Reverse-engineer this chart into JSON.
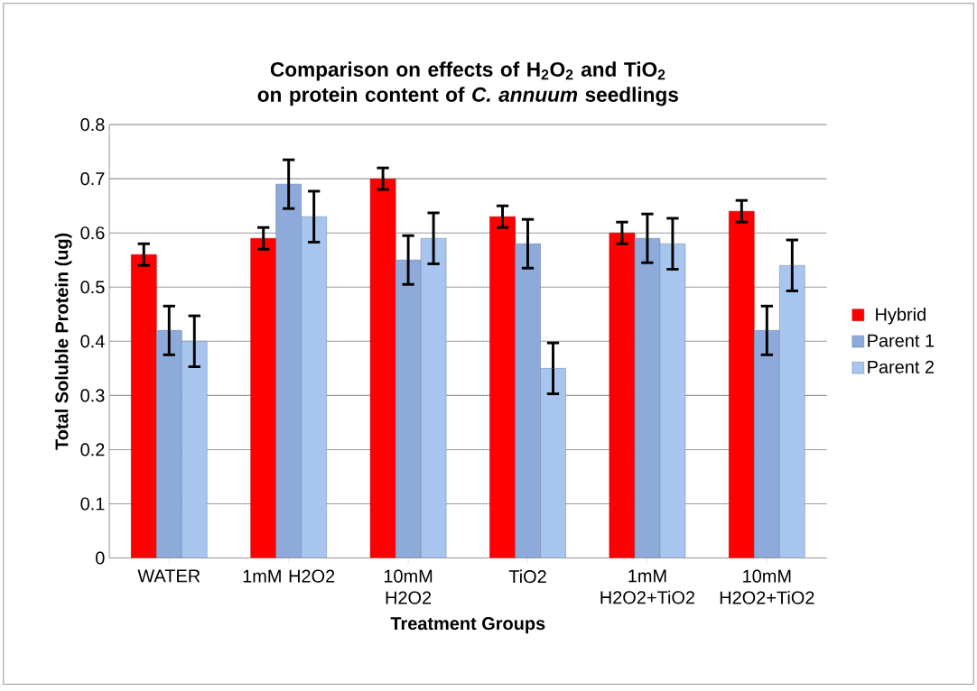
{
  "chart_data": {
    "type": "bar",
    "title": "Comparison on effects of H$_{2}$O$_{2}$ and TiO$_{2}$ on protein content of *C. annuum* seedlings",
    "xlabel": "Treatment Groups",
    "ylabel": "Total Soluble Protein (ug)",
    "categories": [
      "WATER",
      "1mM H2O2",
      "10mM H2O2",
      "TiO2",
      "1mM H2O2+TiO2",
      "10mM H2O2+TiO2"
    ],
    "series": [
      {
        "name": "Hybrid",
        "color": "#ff0000",
        "values": [
          0.56,
          0.59,
          0.7,
          0.63,
          0.6,
          0.64
        ],
        "errors": [
          0.02,
          0.02,
          0.02,
          0.02,
          0.02,
          0.02
        ]
      },
      {
        "name": "Parent 1",
        "color": "#8eaadb",
        "values": [
          0.42,
          0.69,
          0.55,
          0.58,
          0.59,
          0.42
        ],
        "errors": [
          0.045,
          0.045,
          0.045,
          0.045,
          0.045,
          0.045
        ]
      },
      {
        "name": "Parent 2",
        "color": "#a7c5ee",
        "values": [
          0.4,
          0.63,
          0.59,
          0.35,
          0.58,
          0.54
        ],
        "errors": [
          0.047,
          0.047,
          0.047,
          0.047,
          0.047,
          0.047
        ]
      }
    ],
    "ylim": [
      0,
      0.8
    ],
    "yticks": [
      0,
      0.1,
      0.2,
      0.3,
      0.4,
      0.5,
      0.6,
      0.7,
      0.8
    ],
    "grid": "y",
    "legend": "right"
  }
}
